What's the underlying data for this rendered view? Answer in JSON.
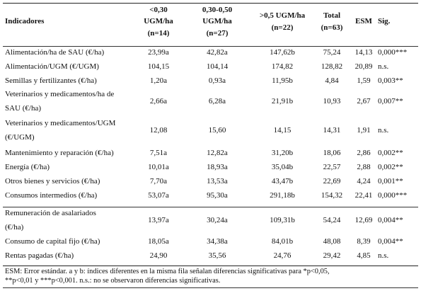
{
  "table": {
    "headers": {
      "indicadores": "Indicadores",
      "col1": [
        "<0,30",
        "UGM/ha",
        "(n=14)"
      ],
      "col2": [
        "0,30-0,50",
        "UGM/ha",
        "(n=27)"
      ],
      "col3": [
        ">0,5 UGM/ha",
        "(n=22)"
      ],
      "col4": [
        "Total",
        "(n=63)"
      ],
      "esm": "ESM",
      "sig": "Sig."
    },
    "rows": [
      {
        "label": [
          "Alimentación/ha de SAU (€/ha)"
        ],
        "v": [
          "23,99a",
          "42,82a",
          "147,62b",
          "75,24",
          "14,13",
          "0,000***"
        ]
      },
      {
        "label": [
          "Alimentación/UGM (€/UGM)"
        ],
        "v": [
          "104,15",
          "104,14",
          "174,82",
          "128,82",
          "20,89",
          "n.s."
        ]
      },
      {
        "label": [
          "Semillas  y fertilizantes (€/ha)"
        ],
        "v": [
          "1,20a",
          "0,93a",
          "11,95b",
          "4,84",
          "1,59",
          "0,003**"
        ]
      },
      {
        "label": [
          "Veterinarios y medicamentos/ha de",
          "SAU  (€/ha)"
        ],
        "v": [
          "2,66a",
          "6,28a",
          "21,91b",
          "10,93",
          "2,67",
          "0,007**"
        ]
      },
      {
        "label": [
          "Veterinarios y medicamentos/UGM",
          "(€/UGM)"
        ],
        "v": [
          "12,08",
          "15,60",
          "14,15",
          "14,31",
          "1,91",
          "n.s."
        ]
      },
      {
        "label": [
          "Mantenimiento y reparación (€/ha)"
        ],
        "v": [
          "7,51a",
          "12,82a",
          "31,20b",
          "18,06",
          "2,86",
          "0,002**"
        ]
      },
      {
        "label": [
          "Energía   (€/ha)"
        ],
        "v": [
          "10,01a",
          "18,93a",
          "35,04b",
          "22,57",
          "2,88",
          "0,002**"
        ]
      },
      {
        "label": [
          "Otros bienes y servicios (€/ha)"
        ],
        "v": [
          "7,70a",
          "13,53a",
          "43,47b",
          "22,69",
          "4,24",
          "0,001**"
        ]
      },
      {
        "label": [
          "Consumos intermedios  (€/ha)"
        ],
        "v": [
          "53,07a",
          "95,30a",
          "291,18b",
          "154,32",
          "22,41",
          "0,000***"
        ]
      },
      {
        "label": [
          "Remuneración de asalariados",
          "(€/ha)"
        ],
        "v": [
          "13,97a",
          "30,24a",
          "109,31b",
          "54,24",
          "12,69",
          "0,004**"
        ]
      },
      {
        "label": [
          "Consumo de capital fijo   (€/ha)"
        ],
        "v": [
          "18,05a",
          "34,38a",
          "84,01b",
          "48,08",
          "8,39",
          "0,004**"
        ]
      },
      {
        "label": [
          "Rentas pagadas  (€/ha)"
        ],
        "v": [
          "24,90",
          "35,56",
          "24,76",
          "29,42",
          "4,85",
          "n.s."
        ]
      }
    ]
  },
  "footnote": {
    "line1": "ESM: Error estándar. a y b: índices diferentes en la misma fila señalan diferencias significativas para *p<0,05,",
    "line2": "**p<0,01 y ***p<0,001. n.s.: no se observaron diferencias significativas."
  }
}
